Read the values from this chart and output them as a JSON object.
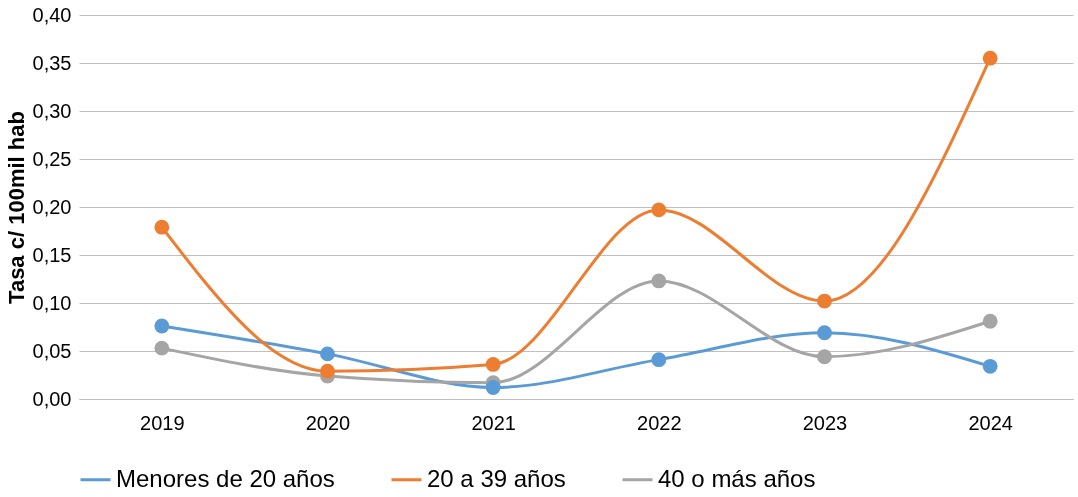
{
  "chart_data": {
    "type": "line",
    "ylabel": "Tasa c/ 100mil hab",
    "categories": [
      "2019",
      "2020",
      "2021",
      "2022",
      "2023",
      "2024"
    ],
    "series": [
      {
        "name": "Menores de 20 años",
        "color": "#5b9bd5",
        "values": [
          0.076,
          0.047,
          0.012,
          0.041,
          0.069,
          0.034
        ]
      },
      {
        "name": "20 a 39 años",
        "color": "#ed7d31",
        "values": [
          0.179,
          0.029,
          0.036,
          0.197,
          0.102,
          0.355
        ]
      },
      {
        "name": "40 o más años",
        "color": "#a5a5a5",
        "values": [
          0.053,
          0.024,
          0.017,
          0.123,
          0.044,
          0.081
        ]
      }
    ],
    "ylim": [
      0,
      0.4
    ],
    "yticks": [
      {
        "value": 0,
        "label": "0,00"
      },
      {
        "value": 0.05,
        "label": "0,05"
      },
      {
        "value": 0.1,
        "label": "0,10"
      },
      {
        "value": 0.15,
        "label": "0,15"
      },
      {
        "value": 0.2,
        "label": "0,20"
      },
      {
        "value": 0.25,
        "label": "0,25"
      },
      {
        "value": 0.3,
        "label": "0,30"
      },
      {
        "value": 0.35,
        "label": "0,35"
      },
      {
        "value": 0.4,
        "label": "0,40"
      }
    ],
    "grid": "y",
    "legend": "bottom",
    "marker": "circle",
    "line_style": "solid"
  }
}
